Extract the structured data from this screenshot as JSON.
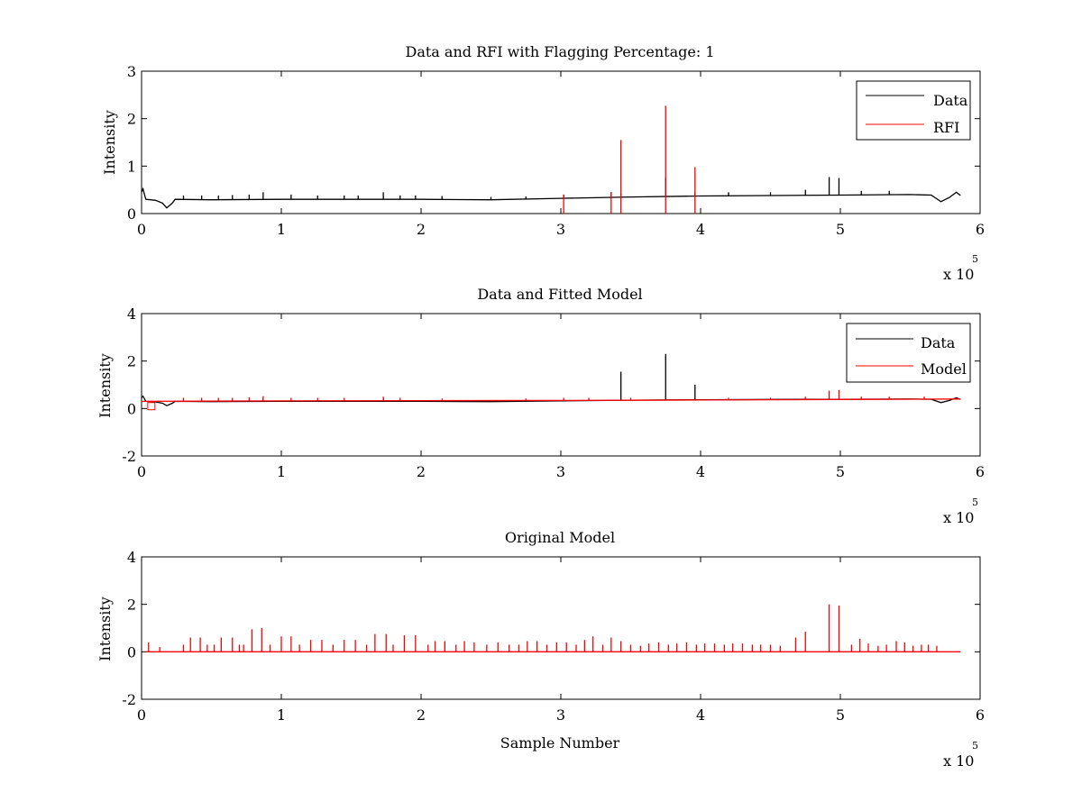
{
  "chart_data": [
    {
      "type": "line",
      "title": "Data and RFI with Flagging Percentage: 1",
      "xlabel": "",
      "ylabel": "Intensity",
      "xlim": [
        0,
        6
      ],
      "ylim": [
        0,
        3
      ],
      "xticks": [
        "0",
        "1",
        "2",
        "3",
        "4",
        "5",
        "6"
      ],
      "yticks": [
        "0",
        "1",
        "2",
        "3"
      ],
      "x_multiplier": {
        "base": "x 10",
        "exponent": "5"
      },
      "legend_position": "top-right",
      "grid": false,
      "series": [
        {
          "name": "Data",
          "color": "#000000",
          "baseline": [
            [
              0,
              0.45
            ],
            [
              0.01,
              0.52
            ],
            [
              0.03,
              0.3
            ],
            [
              0.1,
              0.28
            ],
            [
              0.15,
              0.22
            ],
            [
              0.18,
              0.12
            ],
            [
              0.22,
              0.22
            ],
            [
              0.24,
              0.3
            ],
            [
              0.5,
              0.29
            ],
            [
              1.0,
              0.3
            ],
            [
              1.5,
              0.3
            ],
            [
              2.0,
              0.3
            ],
            [
              2.5,
              0.29
            ],
            [
              3.0,
              0.32
            ],
            [
              3.5,
              0.35
            ],
            [
              4.0,
              0.37
            ],
            [
              4.5,
              0.38
            ],
            [
              5.0,
              0.39
            ],
            [
              5.5,
              0.4
            ],
            [
              5.65,
              0.39
            ],
            [
              5.72,
              0.25
            ],
            [
              5.78,
              0.34
            ],
            [
              5.83,
              0.45
            ],
            [
              5.86,
              0.38
            ]
          ],
          "spikes": [
            [
              0.3,
              0.38
            ],
            [
              0.43,
              0.38
            ],
            [
              0.55,
              0.38
            ],
            [
              0.65,
              0.39
            ],
            [
              0.77,
              0.4
            ],
            [
              0.87,
              0.45
            ],
            [
              1.07,
              0.4
            ],
            [
              1.26,
              0.38
            ],
            [
              1.45,
              0.38
            ],
            [
              1.55,
              0.38
            ],
            [
              1.73,
              0.45
            ],
            [
              1.85,
              0.38
            ],
            [
              1.96,
              0.38
            ],
            [
              2.15,
              0.37
            ],
            [
              2.5,
              0.35
            ],
            [
              2.75,
              0.36
            ],
            [
              3.02,
              0.4
            ],
            [
              3.36,
              0.45
            ],
            [
              3.43,
              0.42
            ],
            [
              3.75,
              0.75
            ],
            [
              3.96,
              0.45
            ],
            [
              4.2,
              0.45
            ],
            [
              4.5,
              0.45
            ],
            [
              4.75,
              0.5
            ],
            [
              4.92,
              0.77
            ],
            [
              4.99,
              0.75
            ],
            [
              5.15,
              0.48
            ],
            [
              5.35,
              0.48
            ]
          ]
        },
        {
          "name": "RFI",
          "color": "#ff0000",
          "spikes": [
            [
              3.02,
              0.4
            ],
            [
              3.36,
              0.45
            ],
            [
              3.43,
              1.55
            ],
            [
              3.75,
              2.27
            ],
            [
              3.96,
              0.98
            ]
          ]
        }
      ]
    },
    {
      "type": "line",
      "title": "Data and Fitted Model",
      "xlabel": "",
      "ylabel": "Intensity",
      "xlim": [
        0,
        6
      ],
      "ylim": [
        -2,
        4
      ],
      "xticks": [
        "0",
        "1",
        "2",
        "3",
        "4",
        "5",
        "6"
      ],
      "yticks": [
        "-2",
        "0",
        "2",
        "4"
      ],
      "x_multiplier": {
        "base": "x 10",
        "exponent": "5"
      },
      "legend_position": "top-right",
      "grid": false,
      "series": [
        {
          "name": "Data",
          "color": "#000000",
          "baseline": [
            [
              0,
              0.45
            ],
            [
              0.01,
              0.52
            ],
            [
              0.03,
              0.3
            ],
            [
              0.1,
              0.28
            ],
            [
              0.15,
              0.22
            ],
            [
              0.18,
              0.12
            ],
            [
              0.22,
              0.22
            ],
            [
              0.24,
              0.3
            ],
            [
              0.5,
              0.29
            ],
            [
              1.0,
              0.3
            ],
            [
              1.5,
              0.3
            ],
            [
              2.0,
              0.3
            ],
            [
              2.5,
              0.29
            ],
            [
              3.0,
              0.32
            ],
            [
              3.5,
              0.35
            ],
            [
              4.0,
              0.37
            ],
            [
              4.5,
              0.38
            ],
            [
              5.0,
              0.39
            ],
            [
              5.5,
              0.4
            ],
            [
              5.65,
              0.39
            ],
            [
              5.72,
              0.25
            ],
            [
              5.78,
              0.34
            ],
            [
              5.83,
              0.45
            ],
            [
              5.86,
              0.38
            ]
          ],
          "spikes": [
            [
              3.43,
              1.55
            ],
            [
              3.75,
              2.3
            ],
            [
              3.96,
              1.0
            ],
            [
              1.73,
              0.45
            ],
            [
              0.87,
              0.45
            ]
          ]
        },
        {
          "name": "Model",
          "color": "#ff0000",
          "baseline": [
            [
              0,
              0.3
            ],
            [
              1.0,
              0.32
            ],
            [
              2.0,
              0.33
            ],
            [
              3.0,
              0.34
            ],
            [
              4.0,
              0.36
            ],
            [
              5.0,
              0.38
            ],
            [
              5.86,
              0.4
            ]
          ],
          "spikes": [
            [
              0.3,
              0.45
            ],
            [
              0.43,
              0.45
            ],
            [
              0.55,
              0.45
            ],
            [
              0.65,
              0.45
            ],
            [
              0.77,
              0.47
            ],
            [
              0.87,
              0.52
            ],
            [
              1.07,
              0.45
            ],
            [
              1.26,
              0.45
            ],
            [
              1.45,
              0.45
            ],
            [
              1.73,
              0.5
            ],
            [
              1.85,
              0.45
            ],
            [
              2.15,
              0.42
            ],
            [
              2.75,
              0.42
            ],
            [
              3.02,
              0.45
            ],
            [
              3.2,
              0.45
            ],
            [
              3.5,
              0.45
            ],
            [
              4.2,
              0.45
            ],
            [
              4.5,
              0.45
            ],
            [
              4.75,
              0.5
            ],
            [
              4.92,
              0.75
            ],
            [
              4.99,
              0.78
            ],
            [
              5.15,
              0.5
            ],
            [
              5.35,
              0.5
            ],
            [
              5.6,
              0.5
            ]
          ],
          "marker_square": [
            0.07,
            0.1
          ]
        }
      ]
    },
    {
      "type": "line",
      "title": "Original Model",
      "xlabel": "Sample Number",
      "ylabel": "Intensity",
      "xlim": [
        0,
        6
      ],
      "ylim": [
        -2,
        4
      ],
      "xticks": [
        "0",
        "1",
        "2",
        "3",
        "4",
        "5",
        "6"
      ],
      "yticks": [
        "-2",
        "0",
        "2",
        "4"
      ],
      "x_multiplier": {
        "base": "x 10",
        "exponent": "5"
      },
      "grid": false,
      "series": [
        {
          "color": "#ff0000",
          "baseline": [
            [
              0.03,
              0
            ],
            [
              5.86,
              0
            ]
          ],
          "spikes": [
            [
              0.05,
              0.4
            ],
            [
              0.13,
              0.2
            ],
            [
              0.3,
              0.3
            ],
            [
              0.35,
              0.6
            ],
            [
              0.42,
              0.6
            ],
            [
              0.47,
              0.3
            ],
            [
              0.52,
              0.3
            ],
            [
              0.57,
              0.6
            ],
            [
              0.65,
              0.6
            ],
            [
              0.7,
              0.3
            ],
            [
              0.73,
              0.3
            ],
            [
              0.79,
              0.95
            ],
            [
              0.86,
              1.0
            ],
            [
              0.92,
              0.3
            ],
            [
              1.0,
              0.65
            ],
            [
              1.07,
              0.65
            ],
            [
              1.13,
              0.3
            ],
            [
              1.21,
              0.5
            ],
            [
              1.29,
              0.5
            ],
            [
              1.37,
              0.3
            ],
            [
              1.45,
              0.5
            ],
            [
              1.53,
              0.5
            ],
            [
              1.61,
              0.3
            ],
            [
              1.67,
              0.75
            ],
            [
              1.75,
              0.75
            ],
            [
              1.8,
              0.3
            ],
            [
              1.88,
              0.7
            ],
            [
              1.96,
              0.7
            ],
            [
              2.05,
              0.3
            ],
            [
              2.1,
              0.45
            ],
            [
              2.17,
              0.45
            ],
            [
              2.25,
              0.3
            ],
            [
              2.31,
              0.45
            ],
            [
              2.38,
              0.4
            ],
            [
              2.47,
              0.3
            ],
            [
              2.55,
              0.4
            ],
            [
              2.63,
              0.3
            ],
            [
              2.7,
              0.3
            ],
            [
              2.76,
              0.45
            ],
            [
              2.83,
              0.45
            ],
            [
              2.9,
              0.3
            ],
            [
              2.97,
              0.4
            ],
            [
              3.04,
              0.4
            ],
            [
              3.11,
              0.3
            ],
            [
              3.17,
              0.5
            ],
            [
              3.23,
              0.65
            ],
            [
              3.3,
              0.3
            ],
            [
              3.36,
              0.6
            ],
            [
              3.43,
              0.45
            ],
            [
              3.5,
              0.3
            ],
            [
              3.57,
              0.25
            ],
            [
              3.63,
              0.35
            ],
            [
              3.7,
              0.4
            ],
            [
              3.77,
              0.3
            ],
            [
              3.83,
              0.35
            ],
            [
              3.9,
              0.4
            ],
            [
              3.97,
              0.3
            ],
            [
              4.03,
              0.35
            ],
            [
              4.1,
              0.35
            ],
            [
              4.17,
              0.3
            ],
            [
              4.23,
              0.35
            ],
            [
              4.3,
              0.35
            ],
            [
              4.37,
              0.3
            ],
            [
              4.43,
              0.3
            ],
            [
              4.5,
              0.3
            ],
            [
              4.57,
              0.25
            ],
            [
              4.68,
              0.6
            ],
            [
              4.75,
              0.85
            ],
            [
              4.92,
              2.0
            ],
            [
              4.99,
              1.95
            ],
            [
              5.08,
              0.3
            ],
            [
              5.14,
              0.55
            ],
            [
              5.2,
              0.35
            ],
            [
              5.27,
              0.25
            ],
            [
              5.33,
              0.3
            ],
            [
              5.4,
              0.45
            ],
            [
              5.46,
              0.4
            ],
            [
              5.52,
              0.25
            ],
            [
              5.58,
              0.3
            ],
            [
              5.63,
              0.3
            ],
            [
              5.69,
              0.25
            ]
          ]
        }
      ]
    }
  ]
}
